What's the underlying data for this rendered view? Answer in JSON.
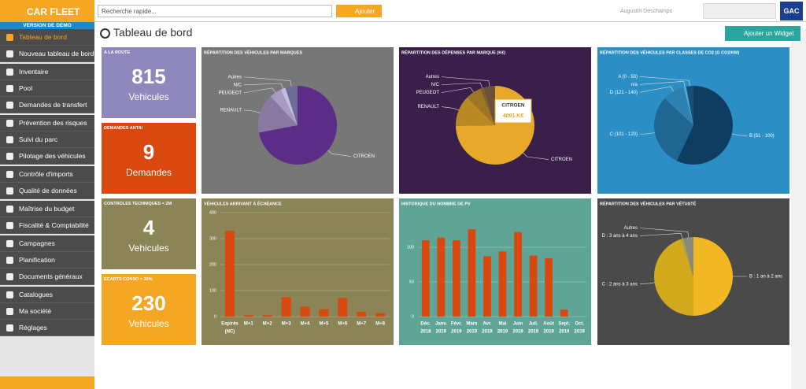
{
  "header": {
    "brand": "CAR FLEET",
    "version": "VERSION DE DEMO",
    "search_placeholder": "Recherche rapide...",
    "add_button": "Ajouter",
    "user": "Augustin Deschamps",
    "partner": "GAC"
  },
  "sidebar": {
    "groups": [
      {
        "items": [
          {
            "label": "Tableau de bord",
            "active": true
          },
          {
            "label": "Nouveau tableau de bord"
          }
        ]
      },
      {
        "items": [
          {
            "label": "Inventaire"
          },
          {
            "label": "Pool"
          },
          {
            "label": "Demandes de transfert"
          }
        ]
      },
      {
        "items": [
          {
            "label": "Prévention des risques"
          },
          {
            "label": "Suivi du parc"
          },
          {
            "label": "Pilotage des véhicules"
          }
        ]
      },
      {
        "items": [
          {
            "label": "Contrôle d'imports"
          },
          {
            "label": "Qualité de données"
          }
        ]
      },
      {
        "items": [
          {
            "label": "Maîtrise du budget"
          },
          {
            "label": "Fiscalité & Comptabilité"
          }
        ]
      },
      {
        "items": [
          {
            "label": "Campagnes"
          },
          {
            "label": "Planification"
          },
          {
            "label": "Documents généraux"
          }
        ]
      },
      {
        "items": [
          {
            "label": "Catalogues"
          },
          {
            "label": "Ma société"
          },
          {
            "label": "Réglages"
          }
        ]
      }
    ]
  },
  "page_title": "Tableau de bord",
  "add_widget": "Ajouter un Widget",
  "kpis": [
    {
      "title": "A LA ROUTE",
      "value": 815,
      "unit": "Vehicules",
      "color": "#8e88bc"
    },
    {
      "title": "DEMANDES ANTAI",
      "value": 9,
      "unit": "Demandes",
      "color": "#d9480f"
    },
    {
      "title": "CONTROLES TECHNIQUES < 2M",
      "value": 4,
      "unit": "Vehicules",
      "color": "#8a8457"
    },
    {
      "title": "ECARTS CONSO > 30%",
      "value": 230,
      "unit": "Vehicules",
      "color": "#f5a623"
    }
  ],
  "chart_data": [
    {
      "type": "pie",
      "title": "RÉPARTITION DES VÉHICULES PAR MARQUES",
      "background": "#777777",
      "categories": [
        "CITROEN",
        "RENAULT",
        "PEUGEOT",
        "N/C",
        "Autres"
      ],
      "values": [
        72,
        16,
        5,
        2,
        5
      ],
      "colors": [
        "#5b2d86",
        "#8a7aa3",
        "#a79bc4",
        "#c3bde0",
        "#6d6a9c"
      ]
    },
    {
      "type": "pie",
      "title": "RÉPARTITION DES DÉPENSES PAR MARQUE (K€)",
      "background": "#3a1f4a",
      "categories": [
        "CITROEN",
        "RENAULT",
        "PEUGEOT",
        "N/C",
        "Autres"
      ],
      "values": [
        4091,
        700,
        350,
        80,
        250
      ],
      "value_labels": [
        "4091 K€",
        null,
        null,
        null,
        null
      ],
      "colors": [
        "#e8a82a",
        "#b98a24",
        "#9c7526",
        "#7d6030",
        "#6a5238"
      ]
    },
    {
      "type": "pie",
      "title": "RÉPARTITION DES VÉHICULES PAR CLASSES DE CO2 (G CO2/KM)",
      "background": "#2b8fc6",
      "categories": [
        "B (51 - 100)",
        "C (101 - 120)",
        "D (121 - 140)",
        "n/a",
        "A (0 - 50)"
      ],
      "values": [
        57,
        30,
        9,
        1,
        3
      ],
      "colors": [
        "#0f3d62",
        "#1f6792",
        "#2d82b2",
        "#5aa8d2",
        "#145075"
      ]
    },
    {
      "type": "bar",
      "title": "VÉHICULES ARRIVANT À ÉCHÉANCE",
      "background": "#8a8457",
      "color": "#d9480f",
      "categories": [
        [
          "Expirés",
          "(NC)"
        ],
        [
          "M+1"
        ],
        [
          "M+2"
        ],
        [
          "M+3"
        ],
        [
          "M+4"
        ],
        [
          "M+5"
        ],
        [
          "M+6"
        ],
        [
          "M+7"
        ],
        [
          "M+8"
        ]
      ],
      "values": [
        330,
        5,
        5,
        75,
        38,
        28,
        72,
        18,
        13
      ],
      "ylim": [
        0,
        400
      ],
      "yticks": [
        0,
        100,
        200,
        300,
        400
      ],
      "grid": true
    },
    {
      "type": "bar",
      "title": "HISTORIQUE DU NOMBRE DE PV",
      "background": "#5fa596",
      "color": "#d9480f",
      "categories": [
        [
          "Déc.",
          "2018"
        ],
        [
          "Janv.",
          "2019"
        ],
        [
          "Févr.",
          "2019"
        ],
        [
          "Mars",
          "2019"
        ],
        [
          "Avr.",
          "2019"
        ],
        [
          "Mai",
          "2019"
        ],
        [
          "Juin",
          "2019"
        ],
        [
          "Juil.",
          "2019"
        ],
        [
          "Août",
          "2019"
        ],
        [
          "Sept.",
          "2019"
        ],
        [
          "Oct.",
          "2019"
        ]
      ],
      "values": [
        110,
        114,
        110,
        126,
        87,
        94,
        122,
        88,
        84,
        10,
        null
      ],
      "ylim": [
        0,
        150
      ],
      "yticks": [
        0,
        50,
        100
      ],
      "grid": true
    },
    {
      "type": "pie",
      "title": "RÉPARTITION DES VÉHICULES PAR VÉTUSTÉ",
      "background": "#4a4a4a",
      "categories": [
        "B : 1 an à 2 ans",
        "C : 2 ans à 3 ans",
        "D : 3 ans à 4 ans",
        "Autres"
      ],
      "values": [
        50,
        45,
        1,
        4
      ],
      "colors": [
        "#f2b824",
        "#d0aa1c",
        "#a29c72",
        "#8a8878"
      ]
    }
  ]
}
